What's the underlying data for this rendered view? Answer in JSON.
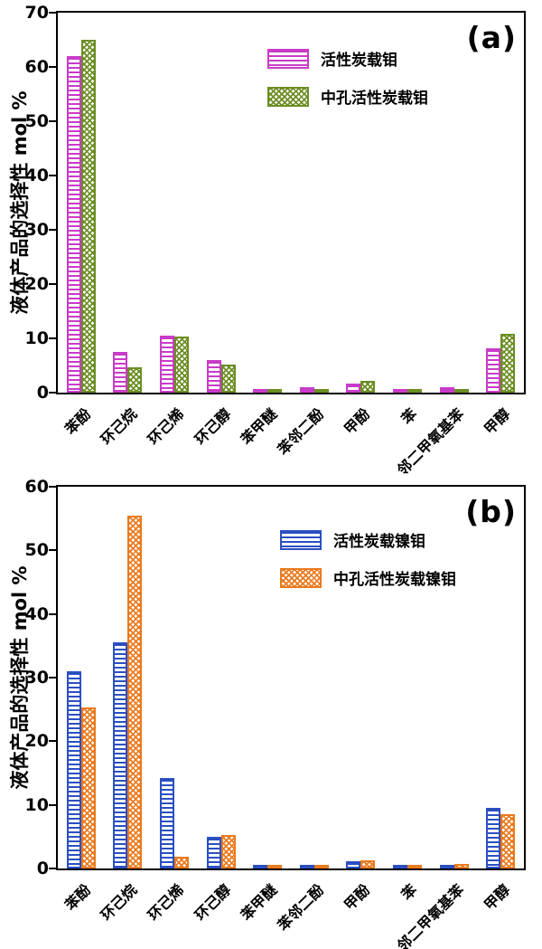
{
  "chart_data": [
    {
      "type": "bar",
      "corner_label": "(a)",
      "ylabel": "液体产品的选择性 mol %",
      "ylim": [
        0,
        70
      ],
      "yticks": [
        0,
        10,
        20,
        30,
        40,
        50,
        60,
        70
      ],
      "grid": false,
      "legend_position": "upper-center-right",
      "categories": [
        "苯酚",
        "环己烷",
        "环己烯",
        "环己醇",
        "苯甲醚",
        "苯邻二酚",
        "甲酚",
        "苯",
        "邻二甲氧基苯",
        "甲醇"
      ],
      "series": [
        {
          "name": "活性炭载钼",
          "color": "#C93BC9",
          "pattern": "hlines",
          "values": [
            62,
            7.5,
            10.5,
            6.0,
            0.5,
            1.0,
            1.7,
            0.5,
            1.0,
            8.1
          ]
        },
        {
          "name": "中孔活性炭载钼",
          "color": "#6B8E23",
          "pattern": "crosshatch",
          "values": [
            65,
            4.7,
            10.3,
            5.1,
            0.3,
            0.1,
            2.1,
            0.3,
            0.6,
            10.9
          ]
        }
      ]
    },
    {
      "type": "bar",
      "corner_label": "(b)",
      "ylabel": "液体产品的选择性 mol %",
      "ylim": [
        0,
        60
      ],
      "yticks": [
        0,
        10,
        20,
        30,
        40,
        50,
        60
      ],
      "grid": false,
      "legend_position": "upper-center-right",
      "categories": [
        "苯酚",
        "环己烷",
        "环己烯",
        "环己醇",
        "苯甲醚",
        "苯邻二酚",
        "甲酚",
        "苯",
        "邻二甲氧基苯",
        "甲醇"
      ],
      "series": [
        {
          "name": "活性炭载镍钼",
          "color": "#2B4FC2",
          "pattern": "hlines",
          "values": [
            31,
            35.5,
            14.2,
            5.0,
            0.6,
            0.5,
            1.2,
            0.2,
            0.5,
            9.5
          ]
        },
        {
          "name": "中孔活性炭载镍钼",
          "color": "#EB7A1E",
          "pattern": "crosshatch",
          "values": [
            25.3,
            55.5,
            1.8,
            5.3,
            0.4,
            0.4,
            1.3,
            0.5,
            0.7,
            8.6
          ]
        }
      ]
    }
  ]
}
